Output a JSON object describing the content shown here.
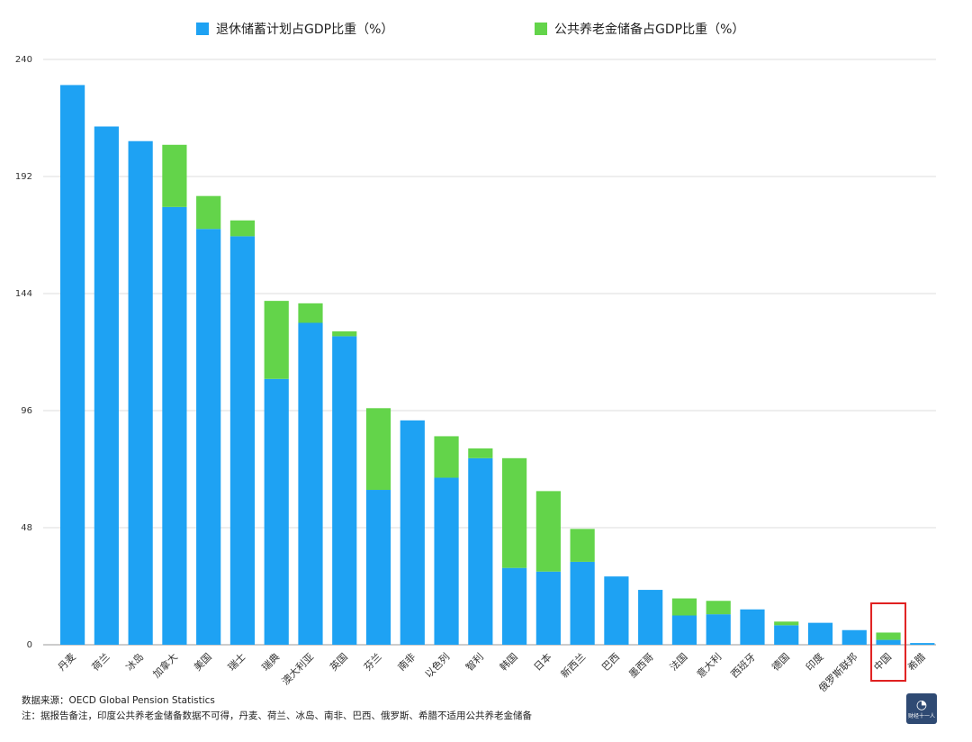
{
  "legend": {
    "series1": "退休储蓄计划占GDP比重（%）",
    "series2": "公共养老金储备占GDP比重（%）"
  },
  "colors": {
    "series1": "#1ea2f3",
    "series2": "#63d44a",
    "highlight": "#e02020",
    "grid": "#dddddd"
  },
  "chart_data": {
    "type": "bar",
    "stacked": true,
    "title": "",
    "xlabel": "",
    "ylabel": "",
    "ylim": [
      0,
      240
    ],
    "yticks": [
      0,
      48,
      96,
      144,
      192,
      240
    ],
    "grid": true,
    "legend_position": "top",
    "categories": [
      "丹麦",
      "荷兰",
      "冰岛",
      "加拿大",
      "美国",
      "瑞士",
      "瑞典",
      "澳大利亚",
      "英国",
      "芬兰",
      "南非",
      "以色列",
      "智利",
      "韩国",
      "日本",
      "新西兰",
      "巴西",
      "墨西哥",
      "法国",
      "意大利",
      "西班牙",
      "德国",
      "印度",
      "俄罗斯联邦",
      "中国",
      "希腊"
    ],
    "series": [
      {
        "name": "退休储蓄计划占GDP比重（%）",
        "values": [
          229.5,
          212.5,
          206.5,
          179.5,
          170.5,
          167.5,
          109,
          132,
          126.5,
          63.5,
          92,
          68.5,
          76.5,
          31.5,
          30,
          34,
          28,
          22.5,
          12,
          12.5,
          14.5,
          8,
          9,
          6,
          2,
          0.7
        ]
      },
      {
        "name": "公共养老金储备占GDP比重（%）",
        "values": [
          0,
          0,
          0,
          25.5,
          13.5,
          6.5,
          32,
          8,
          2,
          33.5,
          0,
          17,
          4,
          45,
          33,
          13.5,
          0,
          0,
          7,
          5.5,
          0,
          1.5,
          0,
          0,
          3,
          0
        ]
      }
    ],
    "highlight_category": "中国"
  },
  "footnotes": {
    "source": "数据来源：OECD Global Pension Statistics",
    "note": "注：据报告备注，印度公共养老金储备数据不可得，丹麦、荷兰、冰岛、南非、巴西、俄罗斯、希腊不适用公共养老金储备"
  },
  "logo": {
    "text": "财经十一人"
  }
}
